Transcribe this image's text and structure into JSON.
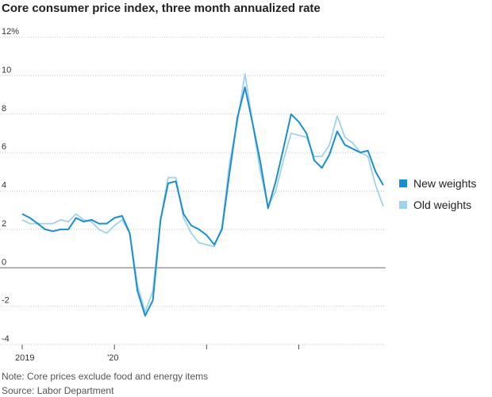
{
  "title": "Core consumer price index, three month annualized rate",
  "note": "Note: Core prices exclude food and energy items",
  "source": "Source: Labor Department",
  "chart_data": {
    "type": "line",
    "title": "Core consumer price index, three month annualized rate",
    "y_ticks": [
      -4,
      -2,
      0,
      2,
      4,
      6,
      8,
      10,
      12
    ],
    "y_tick_labels": [
      "-4",
      "-2",
      "0",
      "2",
      "4",
      "6",
      "8",
      "10",
      "12%"
    ],
    "ylim": [
      -4,
      12
    ],
    "x_tick_labels": [
      "2019",
      "'20",
      "",
      ""
    ],
    "x_tick_positions": [
      0,
      12,
      24,
      36
    ],
    "xlim": [
      0,
      47
    ],
    "grid": true,
    "legend_placement": "right",
    "series": [
      {
        "name": "New weights",
        "color": "#1a8fd0",
        "values": [
          2.8,
          2.6,
          2.3,
          2.0,
          1.9,
          2.0,
          2.0,
          2.6,
          2.4,
          2.5,
          2.3,
          2.3,
          2.6,
          2.7,
          1.8,
          -1.2,
          -2.5,
          -1.7,
          2.5,
          4.4,
          4.5,
          2.8,
          2.2,
          2.0,
          1.7,
          1.2,
          2.0,
          5.0,
          7.8,
          9.4,
          7.5,
          5.5,
          3.1,
          4.5,
          6.2,
          8.0,
          7.6,
          7.0,
          5.6,
          5.2,
          5.9,
          7.1,
          6.4,
          6.2,
          6.0,
          6.1,
          5.0,
          4.3
        ]
      },
      {
        "name": "Old weights",
        "color": "#9fd2ee",
        "values": [
          2.5,
          2.3,
          2.3,
          2.3,
          2.3,
          2.5,
          2.4,
          2.8,
          2.5,
          2.4,
          2.0,
          1.8,
          2.2,
          2.5,
          1.8,
          -0.9,
          -2.3,
          -1.2,
          2.5,
          4.7,
          4.7,
          2.6,
          1.8,
          1.3,
          1.2,
          1.1,
          2.1,
          5.5,
          7.6,
          10.1,
          7.5,
          5.0,
          3.2,
          4.0,
          5.6,
          7.0,
          6.9,
          6.8,
          5.8,
          5.8,
          6.4,
          7.9,
          6.8,
          6.5,
          6.0,
          5.8,
          4.3,
          3.2
        ]
      }
    ]
  }
}
